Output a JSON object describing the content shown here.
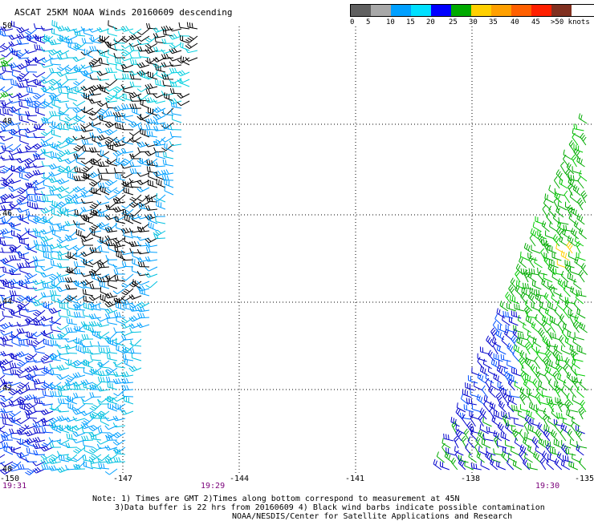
{
  "title": "ASCAT 25KM NOAA Winds 20160609 descending",
  "legend": {
    "colors": [
      "#606060",
      "#a8a8a8",
      "#00a0ff",
      "#00e0ff",
      "#0000ff",
      "#00aa00",
      "#ffd000",
      "#ffa000",
      "#ff6000",
      "#ff2000",
      "#803020",
      "#c08060",
      "#ff00ff",
      "#c000c0",
      "#6000a0",
      "#400080"
    ],
    "labels": [
      "0",
      "5",
      "10",
      "15",
      "20",
      "25",
      "30",
      "35",
      "40",
      "45",
      ">50 knots"
    ]
  },
  "map": {
    "lat_labels": [
      "50",
      "48",
      "46",
      "44",
      "42",
      "40"
    ],
    "lon_labels": [
      "-150",
      "-147",
      "-144",
      "-141",
      "-138",
      "-135"
    ],
    "time_labels": [
      "19:31",
      "19:29",
      "19:30"
    ]
  },
  "notes": {
    "line1": "Note: 1) Times are GMT 2)Times along bottom correspond to measurement at 45N",
    "line2": "3)Data buffer is 22 hrs from 20160609 4) Black wind barbs indicate possible contamination",
    "line3": "NOAA/NESDIS/Center for Satellite Applications and Research"
  }
}
